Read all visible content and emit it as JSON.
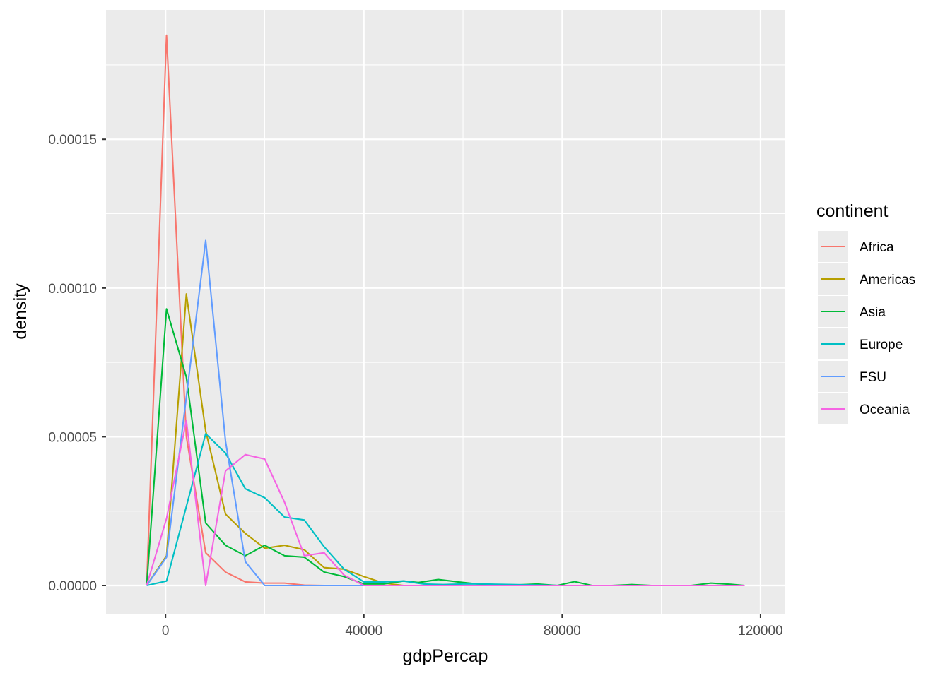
{
  "chart_data": {
    "type": "line",
    "xlabel": "gdpPercap",
    "ylabel": "density",
    "xlim": [
      -12000,
      125000
    ],
    "ylim": [
      -9.5e-06,
      0.0001935
    ],
    "x_ticks": [
      0,
      40000,
      80000,
      120000
    ],
    "x_tick_labels": [
      "0",
      "40000",
      "80000",
      "120000"
    ],
    "y_ticks": [
      0,
      5e-05,
      0.0001,
      0.00015
    ],
    "y_tick_labels": [
      "0.00000",
      "0.00005",
      "0.00010",
      "0.00015"
    ],
    "grid": true,
    "legend": {
      "title": "continent",
      "position": "right"
    },
    "background": "#ebebeb",
    "series": [
      {
        "name": "Africa",
        "color": "#f8766d",
        "points": [
          [
            -3800,
            0
          ],
          [
            200,
            0.000185
          ],
          [
            4200,
            5e-05
          ],
          [
            8100,
            1.1e-05
          ],
          [
            12100,
            4.5e-06
          ],
          [
            16100,
            1.2e-06
          ],
          [
            20000,
            8e-07
          ],
          [
            24000,
            8e-07
          ],
          [
            28000,
            1e-07
          ],
          [
            32000,
            0
          ],
          [
            116800,
            0
          ]
        ]
      },
      {
        "name": "Americas",
        "color": "#b79f00",
        "points": [
          [
            -3800,
            0
          ],
          [
            200,
            1e-05
          ],
          [
            4200,
            9.8e-05
          ],
          [
            8100,
            5.2e-05
          ],
          [
            12100,
            2.4e-05
          ],
          [
            16100,
            1.75e-05
          ],
          [
            20000,
            1.25e-05
          ],
          [
            24000,
            1.35e-05
          ],
          [
            28000,
            1.2e-05
          ],
          [
            32000,
            6e-06
          ],
          [
            36000,
            5.5e-06
          ],
          [
            40000,
            3e-06
          ],
          [
            44000,
            8e-07
          ],
          [
            48000,
            0
          ],
          [
            116800,
            0
          ]
        ]
      },
      {
        "name": "Asia",
        "color": "#00ba38",
        "points": [
          [
            -3800,
            0
          ],
          [
            200,
            9.3e-05
          ],
          [
            4200,
            7e-05
          ],
          [
            8100,
            2.1e-05
          ],
          [
            12100,
            1.35e-05
          ],
          [
            16100,
            1e-05
          ],
          [
            20000,
            1.35e-05
          ],
          [
            24000,
            1e-05
          ],
          [
            28000,
            9.5e-06
          ],
          [
            32000,
            4.5e-06
          ],
          [
            36000,
            3e-06
          ],
          [
            40000,
            5e-07
          ],
          [
            44000,
            5e-07
          ],
          [
            48000,
            1.5e-06
          ],
          [
            51000,
            1e-06
          ],
          [
            55000,
            2e-06
          ],
          [
            59000,
            1.2e-06
          ],
          [
            63000,
            5e-07
          ],
          [
            67000,
            3e-07
          ],
          [
            71000,
            2e-07
          ],
          [
            75000,
            5e-07
          ],
          [
            79000,
            0
          ],
          [
            82500,
            1.3e-06
          ],
          [
            86000,
            0
          ],
          [
            90000,
            0
          ],
          [
            94000,
            3e-07
          ],
          [
            98000,
            0
          ],
          [
            102000,
            0
          ],
          [
            106000,
            0
          ],
          [
            110000,
            8e-07
          ],
          [
            114000,
            4e-07
          ],
          [
            116800,
            0
          ]
        ]
      },
      {
        "name": "Europe",
        "color": "#00bfc4",
        "points": [
          [
            -3800,
            0
          ],
          [
            200,
            1.5e-06
          ],
          [
            8100,
            5.1e-05
          ],
          [
            12100,
            4.45e-05
          ],
          [
            16100,
            3.25e-05
          ],
          [
            20000,
            2.95e-05
          ],
          [
            24000,
            2.3e-05
          ],
          [
            28000,
            2.2e-05
          ],
          [
            32000,
            1.3e-05
          ],
          [
            36000,
            5.5e-06
          ],
          [
            40000,
            1.2e-06
          ],
          [
            44000,
            1.2e-06
          ],
          [
            48000,
            1.5e-06
          ],
          [
            52000,
            5e-07
          ],
          [
            56000,
            3e-07
          ],
          [
            60000,
            5e-07
          ],
          [
            64000,
            5e-07
          ],
          [
            70000,
            3e-07
          ],
          [
            80000,
            0
          ],
          [
            116800,
            0
          ]
        ]
      },
      {
        "name": "FSU",
        "color": "#619cff",
        "points": [
          [
            -3800,
            0
          ],
          [
            200,
            9.5e-06
          ],
          [
            8100,
            0.000116
          ],
          [
            12100,
            4.85e-05
          ],
          [
            16100,
            8e-06
          ],
          [
            20000,
            0
          ],
          [
            116800,
            0
          ]
        ]
      },
      {
        "name": "Oceania",
        "color": "#f564e3",
        "points": [
          [
            -3800,
            0
          ],
          [
            200,
            2.25e-05
          ],
          [
            4200,
            5.55e-05
          ],
          [
            8100,
            0
          ],
          [
            12100,
            3.85e-05
          ],
          [
            16100,
            4.4e-05
          ],
          [
            20000,
            4.25e-05
          ],
          [
            24000,
            2.8e-05
          ],
          [
            28000,
            1e-05
          ],
          [
            32000,
            1.1e-05
          ],
          [
            36000,
            3.5e-06
          ],
          [
            40000,
            0
          ],
          [
            116800,
            0
          ]
        ]
      }
    ]
  }
}
